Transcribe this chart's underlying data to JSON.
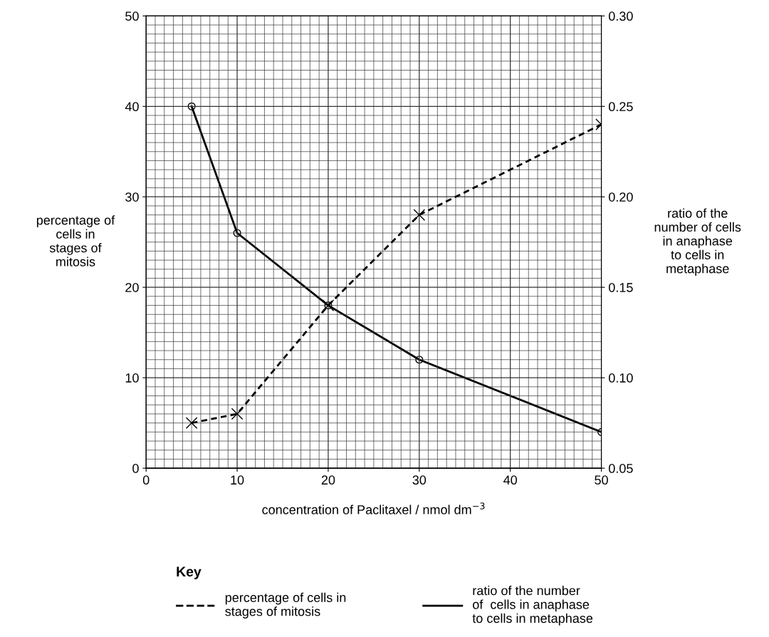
{
  "chart_data": {
    "type": "line",
    "xlabel": "concentration of Paclitaxel / nmol dm$^{−3}$",
    "ylabel": "percentage of\ncells in\nstages of\nmitosis",
    "y2label": "ratio of the\nnumber of cells\nin anaphase\nto cells in\nmetaphase",
    "xlim": [
      0,
      50
    ],
    "xticks": [
      0,
      10,
      20,
      30,
      40,
      50
    ],
    "ylim": [
      0,
      50
    ],
    "yticks": [
      0,
      10,
      20,
      30,
      40,
      50
    ],
    "y2lim": [
      0.05,
      0.3
    ],
    "y2ticks": [
      {
        "value": 0.05,
        "label": "0.05"
      },
      {
        "value": 0.1,
        "label": "0.10"
      },
      {
        "value": 0.15,
        "label": "0.15"
      },
      {
        "value": 0.2,
        "label": "0.20"
      },
      {
        "value": 0.25,
        "label": "0.25"
      },
      {
        "value": 0.3,
        "label": "0.30"
      }
    ],
    "grid": true,
    "legend": "bottom",
    "legend_title": "Key",
    "series": [
      {
        "name": "percentage of cells in\nstages of mitosis",
        "color": "#000000",
        "x": [
          5,
          10,
          20,
          30,
          50
        ],
        "values": [
          5,
          6,
          18,
          28,
          38
        ],
        "marker": "cross",
        "line_style": "dashed"
      },
      {
        "name": "ratio of the number\nof  cells in anaphase\nto cells in metaphase",
        "color": "#000000",
        "x": [
          5,
          10,
          20,
          30,
          50
        ],
        "values": [
          0.25,
          0.18,
          0.14,
          0.11,
          0.07
        ],
        "marker": "circle",
        "line_style": "solid",
        "axis": "y2"
      }
    ]
  }
}
